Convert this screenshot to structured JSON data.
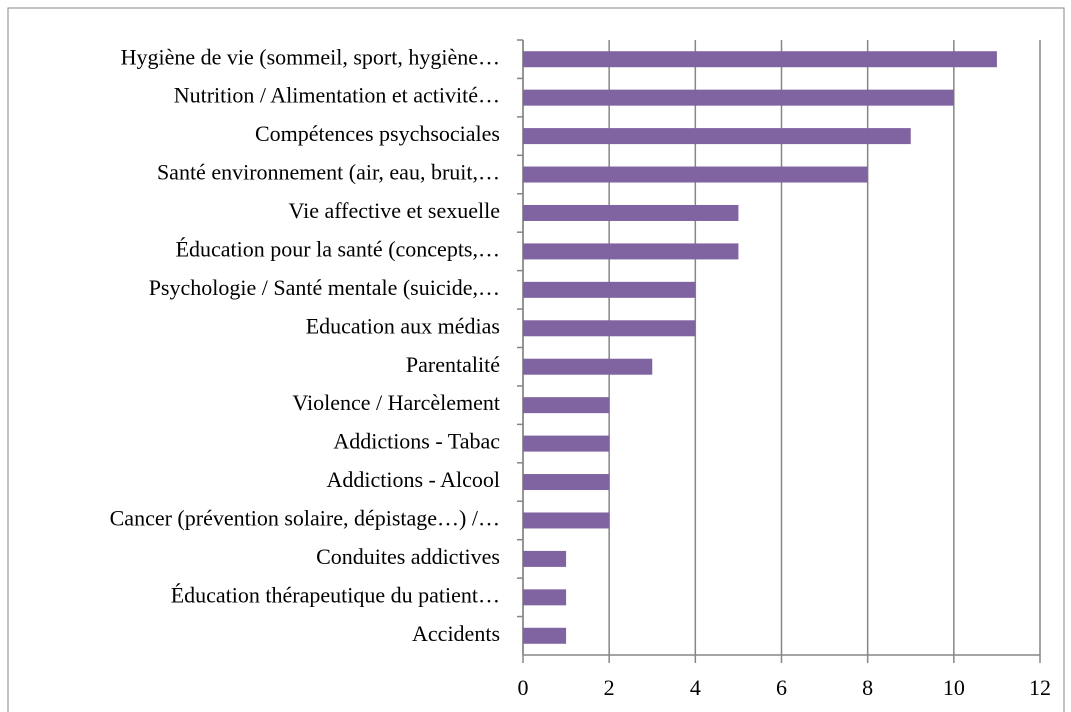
{
  "chart_data": {
    "type": "bar",
    "orientation": "horizontal",
    "categories": [
      "Hygiène de vie (sommeil, sport, hygiène…",
      "Nutrition / Alimentation et activité…",
      "Compétences psychsociales",
      "Santé environnement (air, eau, bruit,…",
      "Vie affective et sexuelle",
      "Éducation pour la santé (concepts,…",
      "Psychologie / Santé mentale (suicide,…",
      "Education aux médias",
      "Parentalité",
      "Violence / Harcèlement",
      "Addictions - Tabac",
      "Addictions - Alcool",
      "Cancer (prévention solaire, dépistage…) /…",
      "Conduites addictives",
      "Éducation thérapeutique du patient…",
      "Accidents"
    ],
    "values": [
      11,
      10,
      9,
      8,
      5,
      5,
      4,
      4,
      3,
      2,
      2,
      2,
      2,
      1,
      1,
      1
    ],
    "color": "#8064a2",
    "xlim": [
      0,
      12
    ],
    "xticks": [
      0,
      2,
      4,
      6,
      8,
      10,
      12
    ],
    "grid": true
  }
}
